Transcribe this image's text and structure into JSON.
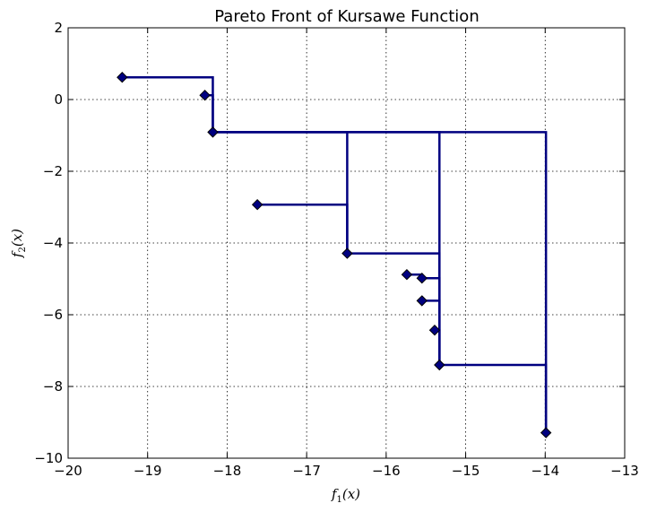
{
  "chart_data": {
    "type": "line",
    "title": "Pareto Front of Kursawe Function",
    "xlabel": {
      "base": "f",
      "sub": "1",
      "arg": "(x)"
    },
    "ylabel": {
      "base": "f",
      "sub": "2",
      "arg": "(x)"
    },
    "xlim": [
      -20,
      -13
    ],
    "ylim": [
      -10,
      2
    ],
    "xticks": [
      -20,
      -19,
      -18,
      -17,
      -16,
      -15,
      -14,
      -13
    ],
    "yticks": [
      -10,
      -8,
      -6,
      -4,
      -2,
      0,
      2
    ],
    "xtick_labels": [
      "−20",
      "−19",
      "−18",
      "−17",
      "−16",
      "−15",
      "−14",
      "−13"
    ],
    "ytick_labels": [
      "−10",
      "−8",
      "−6",
      "−4",
      "−2",
      "0",
      "2"
    ],
    "grid": true,
    "colors": {
      "line": "#000080",
      "marker": "#000080"
    },
    "points": [
      {
        "x": -19.32,
        "y": 0.62
      },
      {
        "x": -18.28,
        "y": 0.12
      },
      {
        "x": -18.18,
        "y": -0.91
      },
      {
        "x": -17.62,
        "y": -2.93
      },
      {
        "x": -16.49,
        "y": -4.29
      },
      {
        "x": -15.74,
        "y": -4.88
      },
      {
        "x": -15.55,
        "y": -4.98
      },
      {
        "x": -15.55,
        "y": -5.61
      },
      {
        "x": -15.39,
        "y": -6.43
      },
      {
        "x": -15.33,
        "y": -7.4
      },
      {
        "x": -13.99,
        "y": -9.29
      }
    ],
    "edges": [
      {
        "from": 0,
        "to": 2
      },
      {
        "from": 1,
        "to": 2
      },
      {
        "from": 2,
        "to": 10
      },
      {
        "from": 2,
        "to": 4
      },
      {
        "from": 2,
        "to": 9
      },
      {
        "from": 3,
        "to": 4
      },
      {
        "from": 4,
        "to": 9
      },
      {
        "from": 5,
        "to": 6
      },
      {
        "from": 6,
        "to": 9
      },
      {
        "from": 7,
        "to": 9
      },
      {
        "from": 8,
        "to": 9
      },
      {
        "from": 9,
        "to": 10
      }
    ]
  }
}
